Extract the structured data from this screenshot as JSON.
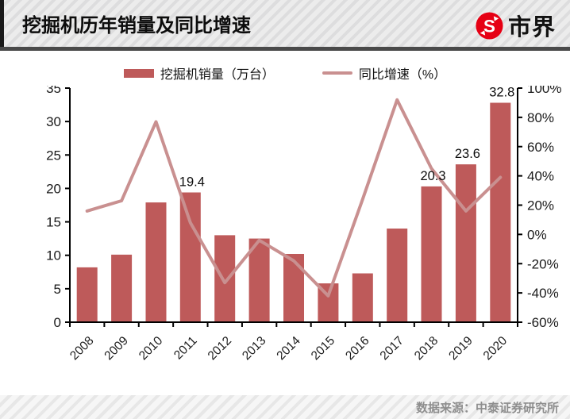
{
  "header": {
    "title": "挖掘机历年销量及同比增速",
    "logo_text": "市界"
  },
  "legend": {
    "bars_label": "挖掘机销量（万台）",
    "line_label": "同比增速（%）"
  },
  "footer": {
    "source": "数据来源：中泰证券研究所"
  },
  "colors": {
    "bar": "#BE5A5A",
    "line": "#C99090",
    "axis": "#000000",
    "text": "#1a1a1a",
    "logo_red": "#E60014",
    "footer_text": "#8e8e8e"
  },
  "chart_data": {
    "type": "bar+line combo",
    "categories": [
      "2008",
      "2009",
      "2010",
      "2011",
      "2012",
      "2013",
      "2014",
      "2015",
      "2016",
      "2017",
      "2018",
      "2019",
      "2020"
    ],
    "series": [
      {
        "name": "挖掘机销量（万台）",
        "type": "bar",
        "axis": "left",
        "values": [
          8.2,
          10.1,
          17.9,
          19.4,
          13.0,
          12.5,
          10.2,
          5.8,
          7.3,
          14.0,
          20.3,
          23.6,
          32.8
        ]
      },
      {
        "name": "同比增速（%）",
        "type": "line",
        "axis": "right",
        "values": [
          16,
          23,
          77,
          8,
          -33,
          -4,
          -18,
          -42,
          24,
          92,
          45,
          16,
          39
        ]
      }
    ],
    "point_labels": [
      "",
      "",
      "",
      "19.4",
      "",
      "",
      "",
      "",
      "",
      "",
      "20.3",
      "23.6",
      "32.8"
    ],
    "left_axis": {
      "min": 0,
      "max": 35,
      "step": 5,
      "suffix": ""
    },
    "right_axis": {
      "min": -60,
      "max": 100,
      "step": 20,
      "suffix": "%"
    },
    "grid": false,
    "legend_position": "top"
  }
}
